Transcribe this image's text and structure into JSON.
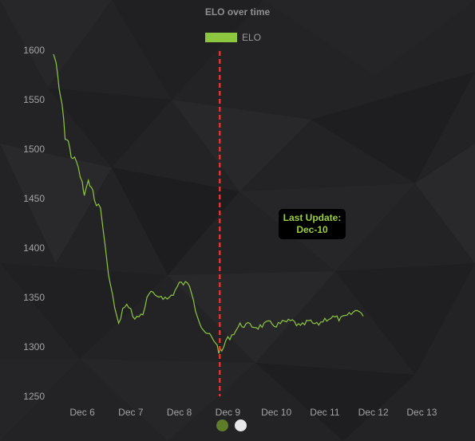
{
  "chart_data": {
    "type": "line",
    "title": "ELO over time",
    "xlabel": "",
    "ylabel": "",
    "x_ticks": [
      "Dec 6",
      "Dec 7",
      "Dec 8",
      "Dec 9",
      "Dec 10",
      "Dec 11",
      "Dec 12",
      "Dec 13"
    ],
    "y_ticks": [
      1250,
      1300,
      1350,
      1400,
      1450,
      1500,
      1550,
      1600
    ],
    "ylim": [
      1250,
      1600
    ],
    "xlim": [
      "Dec 5 21:45",
      "Dec 13 15:00"
    ],
    "grid": false,
    "legend": "top",
    "series": [
      {
        "name": "ELO",
        "color": "#8dc63f",
        "points": [
          [
            "Dec 5 21:45",
            1596
          ],
          [
            "Dec 5 23:00",
            1588
          ],
          [
            "Dec 6 00:30",
            1560
          ],
          [
            "Dec 6 02:00",
            1545
          ],
          [
            "Dec 6 03:30",
            1512
          ],
          [
            "Dec 6 05:00",
            1508
          ],
          [
            "Dec 6 06:30",
            1493
          ],
          [
            "Dec 6 09:00",
            1488
          ],
          [
            "Dec 6 12:00",
            1465
          ],
          [
            "Dec 6 13:00",
            1453
          ],
          [
            "Dec 6 15:00",
            1466
          ],
          [
            "Dec 6 16:30",
            1464
          ],
          [
            "Dec 6 18:00",
            1448
          ],
          [
            "Dec 6 21:00",
            1440
          ],
          [
            "Dec 6 22:30",
            1416
          ],
          [
            "Dec 7 00:00",
            1388
          ],
          [
            "Dec 7 02:00",
            1362
          ],
          [
            "Dec 7 04:00",
            1340
          ],
          [
            "Dec 7 06:00",
            1322
          ],
          [
            "Dec 7 08:00",
            1338
          ],
          [
            "Dec 7 11:00",
            1342
          ],
          [
            "Dec 7 14:00",
            1328
          ],
          [
            "Dec 7 18:00",
            1334
          ],
          [
            "Dec 7 20:00",
            1348
          ],
          [
            "Dec 7 22:00",
            1356
          ],
          [
            "Dec 8 00:00",
            1350
          ],
          [
            "Dec 8 03:00",
            1352
          ],
          [
            "Dec 8 06:00",
            1348
          ],
          [
            "Dec 8 09:00",
            1354
          ],
          [
            "Dec 8 12:00",
            1364
          ],
          [
            "Dec 8 15:00",
            1364
          ],
          [
            "Dec 8 17:00",
            1363
          ],
          [
            "Dec 8 19:00",
            1350
          ],
          [
            "Dec 8 20:00",
            1338
          ],
          [
            "Dec 8 22:00",
            1325
          ],
          [
            "Dec 9 00:00",
            1314
          ],
          [
            "Dec 9 03:00",
            1312
          ],
          [
            "Dec 9 06:00",
            1305
          ],
          [
            "Dec 9 07:30",
            1296
          ],
          [
            "Dec 9 09:00",
            1295
          ],
          [
            "Dec 9 11:00",
            1306
          ],
          [
            "Dec 9 14:00",
            1312
          ],
          [
            "Dec 9 18:00",
            1322
          ],
          [
            "Dec 9 22:00",
            1322
          ],
          [
            "Dec 10 03:00",
            1320
          ],
          [
            "Dec 10 08:00",
            1324
          ],
          [
            "Dec 10 12:00",
            1322
          ],
          [
            "Dec 10 16:00",
            1325
          ],
          [
            "Dec 10 20:00",
            1326
          ],
          [
            "Dec 11 00:00",
            1320
          ],
          [
            "Dec 11 04:00",
            1326
          ],
          [
            "Dec 11 08:00",
            1322
          ],
          [
            "Dec 11 12:00",
            1328
          ],
          [
            "Dec 11 16:00",
            1330
          ],
          [
            "Dec 11 20:00",
            1328
          ],
          [
            "Dec 12 00:00",
            1332
          ],
          [
            "Dec 12 03:00",
            1336
          ],
          [
            "Dec 12 05:00",
            1338
          ],
          [
            "Dec 12 07:00",
            1331
          ]
        ]
      }
    ],
    "annotations": [
      {
        "type": "vertical-line",
        "x": "Dec 9 08:00",
        "color": "#e0342c",
        "style": "dashed",
        "label_lines": [
          "Last Update:",
          "Dec-10"
        ]
      }
    ]
  },
  "pager": {
    "dots": [
      {
        "color": "#5e7d2b",
        "active": true
      },
      {
        "color": "#e8e8e8",
        "active": false
      }
    ]
  }
}
